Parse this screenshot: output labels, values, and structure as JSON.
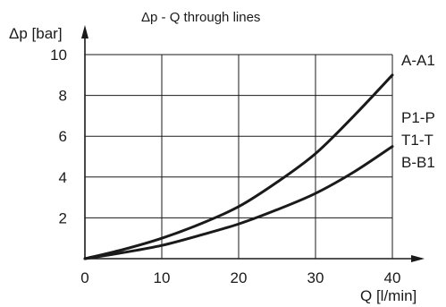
{
  "chart_data": {
    "type": "line",
    "title": "Δp - Q through lines",
    "xlabel": "Q [l/min]",
    "ylabel": "Δp [bar]",
    "xlim": [
      0,
      40
    ],
    "ylim": [
      0,
      10
    ],
    "xticks": [
      0,
      10,
      20,
      30,
      40
    ],
    "yticks": [
      0,
      2,
      4,
      6,
      8,
      10
    ],
    "grid": true,
    "legend_placement": "right",
    "line_color": "#1a1a1a",
    "series": [
      {
        "name": "A-A1",
        "x": [
          0,
          5,
          10,
          15,
          20,
          25,
          30,
          35,
          40
        ],
        "y": [
          0,
          0.45,
          1.0,
          1.7,
          2.55,
          3.75,
          5.15,
          7.0,
          9.0
        ]
      },
      {
        "name": "P1-P T1-T B-B1",
        "x": [
          0,
          5,
          10,
          15,
          20,
          25,
          30,
          35,
          40
        ],
        "y": [
          0,
          0.3,
          0.65,
          1.15,
          1.7,
          2.4,
          3.2,
          4.25,
          5.5
        ]
      }
    ],
    "legend_labels": [
      "A-A1",
      "P1-P",
      "T1-T",
      "B-B1"
    ]
  }
}
